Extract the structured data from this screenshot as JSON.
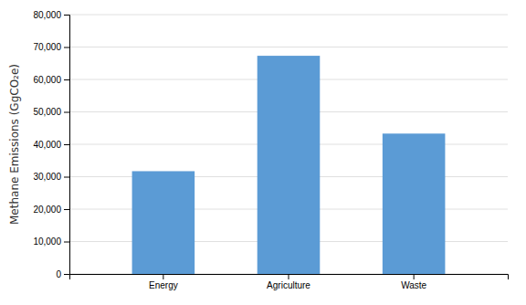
{
  "chart_data": {
    "type": "bar",
    "categories": [
      "Energy",
      "Agriculture",
      "Waste"
    ],
    "values": [
      31700,
      67300,
      43300
    ],
    "color": "#5B9BD5",
    "ylabel": "Methane Emissions (GgCO₂e)",
    "ylim": [
      0,
      80000
    ],
    "yticks": [
      0,
      {
        "value": 10000,
        "label": "10,000"
      },
      {
        "value": 20000,
        "label": "20,000"
      },
      {
        "value": 30000,
        "label": "30,000"
      },
      {
        "value": 40000,
        "label": "40,000"
      },
      {
        "value": 50000,
        "label": "50,000"
      },
      {
        "value": 60000,
        "label": "60,000"
      },
      {
        "value": 70000,
        "label": "70,000"
      },
      {
        "value": 80000,
        "label": "80,000"
      }
    ],
    "grid": true
  }
}
